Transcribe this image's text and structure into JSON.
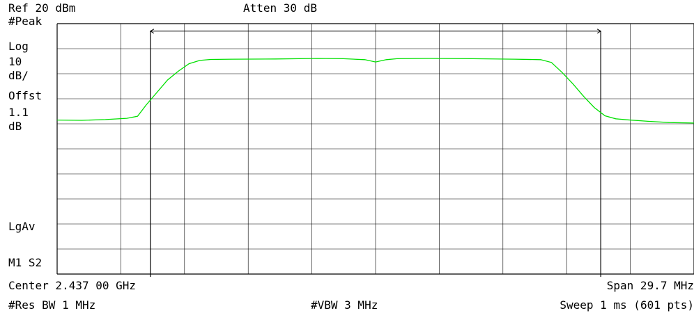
{
  "header": {
    "ref_level": "Ref 20 dBm",
    "attenuation": "Atten 30 dB"
  },
  "left_panel": {
    "detector": "#Peak",
    "scale_type": "Log",
    "scale_value": "10",
    "scale_unit": "dB/",
    "offset_label": "Offst",
    "offset_value": "1.1",
    "offset_unit": "dB",
    "averaging": "LgAv",
    "markers": "M1  S2"
  },
  "footer": {
    "center": "Center 2.437 00 GHz",
    "span": "Span 29.7 MHz",
    "rbw": "#Res BW 1 MHz",
    "vbw": "#VBW 3 MHz",
    "sweep": "Sweep 1 ms (601 pts)"
  },
  "colors": {
    "trace": "#00e000",
    "grid": "#000000",
    "background": "#ffffff"
  },
  "chart_data": {
    "type": "line",
    "title": "",
    "xlabel": "",
    "ylabel": "",
    "x_unit": "GHz",
    "y_unit": "dBm",
    "xlim": [
      2.42215,
      2.45185
    ],
    "ylim": [
      -80,
      20
    ],
    "grid": true,
    "series": [
      {
        "color": "#00e000",
        "x": [
          2.42215,
          2.4233,
          2.4244,
          2.4254,
          2.4259,
          2.4263,
          2.4268,
          2.4273,
          2.4278,
          2.4283,
          2.4288,
          2.4293,
          2.4303,
          2.4323,
          2.4343,
          2.4355,
          2.4365,
          2.437,
          2.4375,
          2.438,
          2.4395,
          2.4415,
          2.4435,
          2.4447,
          2.4452,
          2.4457,
          2.4462,
          2.4467,
          2.4472,
          2.4477,
          2.4482,
          2.4487,
          2.4497,
          2.4507,
          2.45185
        ],
        "y": [
          -18.5,
          -18.6,
          -18.3,
          -17.8,
          -17.0,
          -12.5,
          -7.5,
          -2.5,
          1.0,
          4.0,
          5.3,
          5.7,
          5.8,
          5.9,
          6.1,
          6.0,
          5.6,
          4.7,
          5.6,
          6.0,
          6.1,
          6.0,
          5.8,
          5.6,
          4.5,
          0.5,
          -4.0,
          -9.0,
          -13.5,
          -16.8,
          -18.0,
          -18.4,
          -19.0,
          -19.5,
          -19.7
        ]
      },
      {
        "name": "marker-span",
        "color": "#000000",
        "x": [
          2.4265,
          2.4475
        ],
        "y": [
          17,
          17
        ]
      }
    ]
  }
}
